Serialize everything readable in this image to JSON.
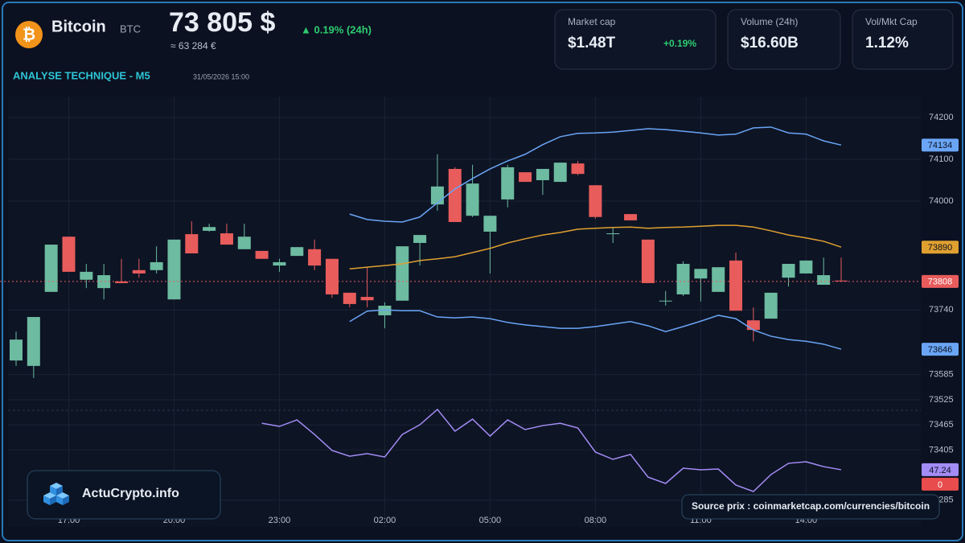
{
  "header": {
    "logo_symbol": "₿",
    "name": "Bitcoin",
    "ticker": "BTC",
    "price": "73 805 $",
    "change": "▲ 0.19% (24h)",
    "price_eur": "≈ 63 284 €",
    "section": "ANALYSE TECHNIQUE - M5",
    "timestamp": "31/05/2026 15:00"
  },
  "cards": [
    {
      "label": "Market cap",
      "value": "$1.48T",
      "change": "+0.19%"
    },
    {
      "label": "Volume (24h)",
      "value": "$16.60B"
    },
    {
      "label": "Vol/Mkt Cap",
      "value": "1.12%"
    }
  ],
  "branding": "ActuCrypto.info",
  "source": "Source prix : coinmarketcap.com/currencies/bitcoin",
  "chart_data": [
    {
      "type": "candlestick",
      "categories": [
        null,
        null,
        null,
        "17:00",
        null,
        null,
        null,
        null,
        null,
        "20:00",
        null,
        null,
        null,
        null,
        null,
        "23:00",
        null,
        null,
        null,
        null,
        null,
        "02:00",
        null,
        null,
        null,
        null,
        null,
        "05:00",
        null,
        null,
        null,
        null,
        null,
        "08:00",
        null,
        null,
        null,
        null,
        null,
        "11:00",
        null,
        null,
        null,
        null,
        null,
        "14:00",
        null,
        null
      ],
      "open": [
        73619,
        73606,
        73783,
        73915,
        73812,
        73792,
        73808,
        73835,
        73835,
        73765,
        73921,
        73929,
        73923,
        73885,
        73881,
        73846,
        73869,
        73885,
        73862,
        73781,
        73771,
        73727,
        73762,
        73900,
        73992,
        74077,
        73965,
        73927,
        74004,
        74069,
        74050,
        74046,
        74090,
        74038,
        73921,
        73969,
        73908,
        73761,
        73777,
        73815,
        73783,
        73858,
        73715,
        73719,
        73817,
        73827,
        73800,
        73810
      ],
      "high": [
        73688,
        73723,
        73896,
        73915,
        73850,
        73850,
        73862,
        73862,
        73892,
        73908,
        73952,
        73946,
        73946,
        73946,
        73881,
        73862,
        73890,
        73908,
        73862,
        73781,
        73842,
        73758,
        73892,
        73919,
        74112,
        74081,
        74087,
        73965,
        74087,
        74069,
        74077,
        74092,
        74096,
        74038,
        73937,
        73969,
        73908,
        73785,
        73856,
        73838,
        73842,
        73877,
        73746,
        73781,
        73850,
        73858,
        73865,
        73865
      ],
      "low": [
        73606,
        73577,
        73783,
        73831,
        73792,
        73765,
        73804,
        73817,
        73827,
        73765,
        73875,
        73927,
        73896,
        73885,
        73862,
        73831,
        73869,
        73835,
        73769,
        73746,
        73746,
        73696,
        73762,
        73846,
        73977,
        73950,
        73962,
        73827,
        73985,
        74046,
        74015,
        74046,
        74062,
        73958,
        73900,
        73954,
        73804,
        73750,
        73773,
        73760,
        73783,
        73738,
        73665,
        73719,
        73796,
        73827,
        73800,
        73808
      ],
      "close": [
        73669,
        73723,
        73896,
        73831,
        73831,
        73823,
        73804,
        73827,
        73854,
        73908,
        73875,
        73938,
        73896,
        73915,
        73862,
        73854,
        73890,
        73846,
        73777,
        73754,
        73763,
        73750,
        73892,
        73919,
        74035,
        73950,
        74042,
        73965,
        74081,
        74046,
        74077,
        74092,
        74065,
        73962,
        73923,
        73954,
        73804,
        73762,
        73850,
        73838,
        73842,
        73738,
        73692,
        73781,
        73850,
        73858,
        73823,
        73808
      ],
      "up_color": "#6dbba0",
      "down_color": "#e85c5c",
      "overlays": [
        {
          "color": "#6aa5f5",
          "values": [
            null,
            null,
            null,
            null,
            null,
            null,
            null,
            null,
            null,
            null,
            null,
            null,
            null,
            null,
            null,
            null,
            null,
            null,
            null,
            73969,
            73956,
            73952,
            73950,
            73962,
            73996,
            74029,
            74054,
            74077,
            74096,
            74112,
            74135,
            74154,
            74162,
            74163,
            74165,
            74169,
            74173,
            74171,
            74167,
            74163,
            74158,
            74160,
            74175,
            74177,
            74163,
            74160,
            74144,
            74134
          ]
        },
        {
          "color": "#e0a030",
          "values": [
            null,
            null,
            null,
            null,
            null,
            null,
            null,
            null,
            null,
            null,
            null,
            null,
            null,
            null,
            null,
            null,
            null,
            null,
            null,
            73838,
            73842,
            73846,
            73850,
            73858,
            73862,
            73867,
            73877,
            73887,
            73900,
            73910,
            73919,
            73925,
            73933,
            73935,
            73937,
            73938,
            73935,
            73937,
            73938,
            73940,
            73942,
            73942,
            73938,
            73929,
            73919,
            73912,
            73904,
            73890
          ]
        },
        {
          "color": "#6aa5f5",
          "values": [
            null,
            null,
            null,
            null,
            null,
            null,
            null,
            null,
            null,
            null,
            null,
            null,
            null,
            null,
            null,
            null,
            null,
            null,
            null,
            73712,
            73737,
            73740,
            73738,
            73738,
            73723,
            73721,
            73723,
            73719,
            73710,
            73704,
            73700,
            73696,
            73696,
            73700,
            73706,
            73712,
            73702,
            73688,
            73700,
            73713,
            73727,
            73719,
            73692,
            73677,
            73669,
            73665,
            73658,
            73646
          ]
        }
      ],
      "ylim": [
        73250,
        74250
      ],
      "yticks": [
        74200,
        74100,
        74000,
        73740,
        73585,
        73525,
        73465,
        73405,
        73285
      ],
      "grid": true
    },
    {
      "type": "line",
      "color": "#a38cf5",
      "values": [
        null,
        null,
        null,
        null,
        null,
        null,
        null,
        null,
        null,
        null,
        null,
        null,
        null,
        null,
        76.6,
        74.6,
        78.7,
        69.5,
        59.4,
        55.8,
        57.4,
        55.3,
        69.5,
        75.6,
        85.3,
        71.6,
        79.2,
        68.5,
        78.7,
        72.6,
        75.1,
        76.6,
        73.6,
        58.4,
        53.8,
        56.9,
        42.6,
        38.6,
        48.2,
        47.2,
        47.7,
        37.6,
        33.5,
        44.2,
        51.3,
        52.3,
        49.2,
        47.24
      ],
      "ylim": [
        0,
        100
      ],
      "signal": {
        "value": 0,
        "color": "#e84c4c"
      }
    }
  ]
}
